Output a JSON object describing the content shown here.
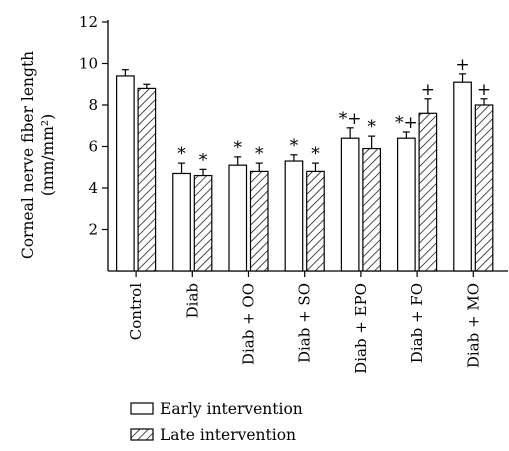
{
  "chart_data": {
    "type": "bar",
    "categories": [
      "Control",
      "Diab",
      "Diab + OO",
      "Diab + SO",
      "Diab + EPO",
      "Diab + FO",
      "Diab + MO"
    ],
    "ylabel_line1": "Corneal nerve fiber length",
    "ylabel_line2": "(mm/mm²)",
    "ylim": [
      0,
      12
    ],
    "yticks": [
      2,
      4,
      6,
      8,
      10,
      12
    ],
    "ytick_labels": [
      "2",
      "4",
      "6",
      "8",
      "10",
      "12"
    ],
    "grid": false,
    "legend_position": "bottom-left",
    "series": [
      {
        "name": "Early intervention",
        "pattern": "open",
        "values": [
          9.4,
          4.7,
          5.1,
          5.3,
          6.4,
          6.4,
          9.1
        ],
        "errors": [
          0.3,
          0.5,
          0.4,
          0.3,
          0.5,
          0.3,
          0.4
        ],
        "annotations": [
          "",
          "*",
          "*",
          "*",
          "*+",
          "*+",
          "+"
        ]
      },
      {
        "name": "Late intervention",
        "pattern": "hatched",
        "values": [
          8.8,
          4.6,
          4.8,
          4.8,
          5.9,
          7.6,
          8.0
        ],
        "errors": [
          0.2,
          0.3,
          0.4,
          0.4,
          0.6,
          0.7,
          0.3
        ],
        "annotations": [
          "",
          "*",
          "*",
          "*",
          "*",
          "+",
          "+"
        ]
      }
    ]
  }
}
